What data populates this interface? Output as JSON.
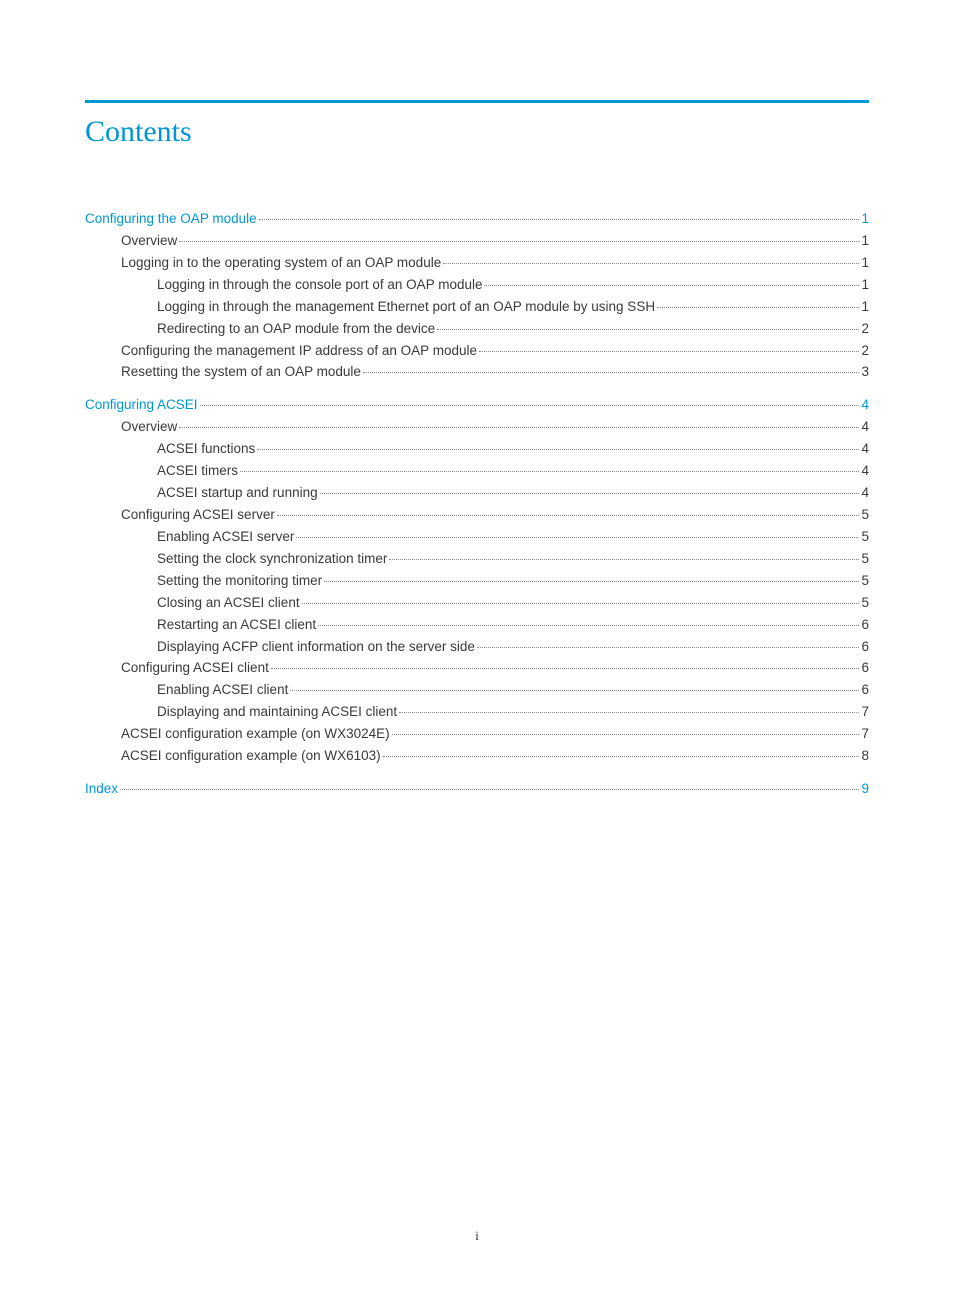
{
  "title": "Contents",
  "footer": "i",
  "accent_color": "#0096d6",
  "text_color": "#3a3a3a",
  "toc": [
    {
      "level": 0,
      "label": "Configuring the OAP module",
      "page": "1"
    },
    {
      "level": 1,
      "label": "Overview",
      "page": "1"
    },
    {
      "level": 1,
      "label": "Logging in to the operating system of an OAP module",
      "page": "1"
    },
    {
      "level": 2,
      "label": "Logging in through the console port of an OAP module",
      "page": "1"
    },
    {
      "level": 2,
      "label": "Logging in through the management Ethernet port of an OAP module by using SSH",
      "page": "1"
    },
    {
      "level": 2,
      "label": "Redirecting to an OAP module from the device",
      "page": "2"
    },
    {
      "level": 1,
      "label": "Configuring the management IP address of an OAP module",
      "page": "2"
    },
    {
      "level": 1,
      "label": "Resetting the system of an OAP module",
      "page": "3"
    },
    {
      "level": 0,
      "label": "Configuring ACSEI",
      "page": "4"
    },
    {
      "level": 1,
      "label": "Overview",
      "page": "4"
    },
    {
      "level": 2,
      "label": "ACSEI functions",
      "page": "4"
    },
    {
      "level": 2,
      "label": "ACSEI timers",
      "page": "4"
    },
    {
      "level": 2,
      "label": "ACSEI startup and running",
      "page": "4"
    },
    {
      "level": 1,
      "label": "Configuring ACSEI server",
      "page": "5"
    },
    {
      "level": 2,
      "label": "Enabling ACSEI server",
      "page": "5"
    },
    {
      "level": 2,
      "label": "Setting the clock synchronization timer",
      "page": "5"
    },
    {
      "level": 2,
      "label": "Setting the monitoring timer",
      "page": "5"
    },
    {
      "level": 2,
      "label": "Closing an ACSEI client",
      "page": "5"
    },
    {
      "level": 2,
      "label": "Restarting an ACSEI client",
      "page": "6"
    },
    {
      "level": 2,
      "label": "Displaying ACFP client information on the server side",
      "page": "6"
    },
    {
      "level": 1,
      "label": "Configuring ACSEI client",
      "page": "6"
    },
    {
      "level": 2,
      "label": "Enabling ACSEI client",
      "page": "6"
    },
    {
      "level": 2,
      "label": "Displaying and maintaining ACSEI client",
      "page": "7"
    },
    {
      "level": 1,
      "label": "ACSEI configuration example (on WX3024E)",
      "page": "7"
    },
    {
      "level": 1,
      "label": "ACSEI configuration example (on WX6103)",
      "page": "8"
    },
    {
      "level": 0,
      "label": "Index",
      "page": "9"
    }
  ]
}
